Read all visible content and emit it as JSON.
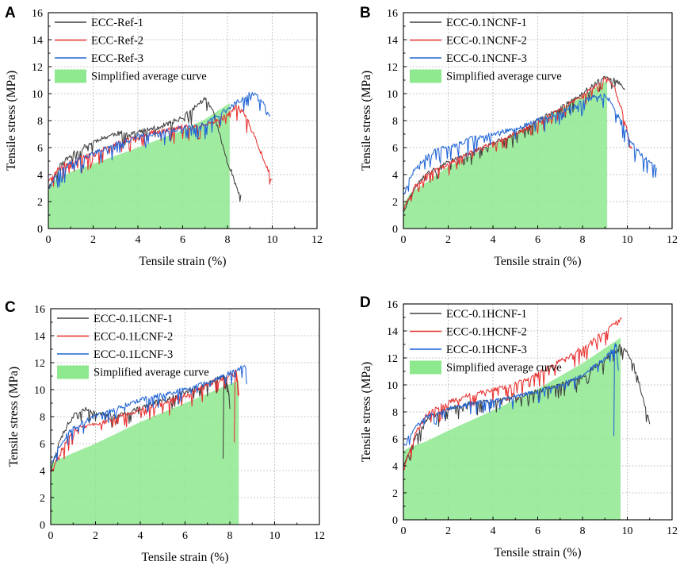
{
  "chart_data": [
    {
      "type": "line",
      "panel": "A",
      "xlabel": "Tensile strain (%)",
      "ylabel": "Tensile stress (MPa)",
      "xlim": [
        0,
        12
      ],
      "ylim": [
        0,
        16
      ],
      "xticks": [
        0,
        2,
        4,
        6,
        8,
        10,
        12
      ],
      "yticks": [
        0,
        2,
        4,
        6,
        8,
        10,
        12,
        14,
        16
      ],
      "grid": true,
      "legend_position": "top-left",
      "series": [
        {
          "name": "ECC-Ref-1",
          "color": "#404040",
          "x": [
            0,
            0.5,
            1,
            2,
            3,
            4,
            5,
            6,
            6.5,
            7,
            7.4,
            7.8,
            8.1,
            8.4,
            8.6
          ],
          "y": [
            3.0,
            4.6,
            5.4,
            6.4,
            7.0,
            7.1,
            7.5,
            8.2,
            8.9,
            9.6,
            8.5,
            6.0,
            4.5,
            3.2,
            2.5
          ],
          "noise": 0.6,
          "seed": 11
        },
        {
          "name": "ECC-Ref-2",
          "color": "#e8312f",
          "x": [
            0,
            0.5,
            1,
            2,
            3,
            4,
            5,
            6,
            7,
            8,
            8.5,
            8.9,
            9.4,
            10.0
          ],
          "y": [
            3.5,
            4.5,
            4.9,
            5.5,
            6.2,
            6.8,
            7.2,
            7.5,
            7.6,
            8.4,
            9.2,
            8.0,
            6.0,
            3.6
          ],
          "noise": 0.6,
          "seed": 23
        },
        {
          "name": "ECC-Ref-3",
          "color": "#1f64d6",
          "x": [
            0,
            0.5,
            1,
            2,
            3,
            4,
            5,
            6,
            7,
            8,
            8.5,
            9,
            9.3,
            9.6,
            9.9
          ],
          "y": [
            3.0,
            4.2,
            4.8,
            5.5,
            6.2,
            6.8,
            7.1,
            7.4,
            7.7,
            8.8,
            9.4,
            10.0,
            9.8,
            9.4,
            8.3
          ],
          "noise": 0.6,
          "seed": 37
        }
      ],
      "simplified_average_curve": {
        "name": "Simplified average curve",
        "color": "#8ee88e",
        "x": [
          0,
          0.3,
          1,
          2,
          4,
          6,
          7,
          8.1,
          8.1
        ],
        "y": [
          2.8,
          3.6,
          4.2,
          4.8,
          6.0,
          7.3,
          8.1,
          9.3,
          0
        ]
      }
    },
    {
      "type": "line",
      "panel": "B",
      "xlabel": "Tensile strain (%)",
      "ylabel": "Tensile stress (MPa)",
      "xlim": [
        0,
        12
      ],
      "ylim": [
        0,
        16
      ],
      "xticks": [
        0,
        2,
        4,
        6,
        8,
        10,
        12
      ],
      "yticks": [
        0,
        2,
        4,
        6,
        8,
        10,
        12,
        14,
        16
      ],
      "grid": true,
      "legend_position": "top-left",
      "series": [
        {
          "name": "ECC-0.1NCNF-1",
          "color": "#404040",
          "x": [
            0,
            0.5,
            1,
            2,
            3,
            4,
            5,
            6,
            7,
            8,
            8.6,
            9.0,
            9.3,
            9.6,
            9.9
          ],
          "y": [
            1.2,
            3.0,
            4.0,
            4.9,
            5.6,
            6.3,
            7.0,
            8.0,
            8.9,
            10.0,
            10.8,
            11.2,
            11.1,
            10.8,
            10.3
          ],
          "noise": 0.5,
          "seed": 41
        },
        {
          "name": "ECC-0.1NCNF-2",
          "color": "#e8312f",
          "x": [
            0,
            0.5,
            1,
            2,
            3,
            4,
            5,
            6,
            7,
            8,
            8.6,
            9.0,
            9.4,
            9.8,
            10.2
          ],
          "y": [
            1.5,
            3.1,
            3.9,
            4.8,
            5.6,
            6.3,
            7.0,
            7.9,
            8.8,
            9.8,
            10.6,
            11.1,
            10.6,
            8.5,
            5.9
          ],
          "noise": 0.5,
          "seed": 53
        },
        {
          "name": "ECC-0.1NCNF-3",
          "color": "#1f64d6",
          "x": [
            0,
            0.3,
            0.6,
            1,
            1.5,
            2,
            3,
            4,
            5,
            6,
            7,
            8,
            9,
            9.6,
            10.3,
            11,
            11.3
          ],
          "y": [
            2.5,
            3.8,
            4.6,
            5.3,
            5.8,
            6.0,
            6.6,
            7.0,
            7.3,
            8.0,
            8.6,
            9.4,
            10.0,
            8.4,
            6.0,
            4.8,
            4.5
          ],
          "noise": 0.6,
          "seed": 67
        }
      ],
      "simplified_average_curve": {
        "name": "Simplified average curve",
        "color": "#8ee88e",
        "x": [
          0,
          0.3,
          1,
          2,
          4,
          6,
          8,
          9.1,
          9.1
        ],
        "y": [
          1.8,
          2.6,
          3.4,
          4.6,
          6.2,
          7.9,
          9.8,
          11.0,
          0
        ]
      }
    },
    {
      "type": "line",
      "panel": "C",
      "xlabel": "Tensile strain (%)",
      "ylabel": "Tensile stress (MPa)",
      "xlim": [
        0,
        12
      ],
      "ylim": [
        0,
        16
      ],
      "xticks": [
        0,
        2,
        4,
        6,
        8,
        10,
        12
      ],
      "yticks": [
        0,
        2,
        4,
        6,
        8,
        10,
        12,
        14,
        16
      ],
      "grid": true,
      "legend_position": "top-left",
      "series": [
        {
          "name": "ECC-0.1LCNF-1",
          "color": "#404040",
          "x": [
            0,
            0.4,
            0.8,
            1.2,
            1.6,
            2,
            3,
            4,
            5,
            6,
            7,
            7.8,
            8.0,
            7.8,
            7.7
          ],
          "y": [
            4.0,
            6.2,
            7.5,
            8.4,
            8.6,
            8.2,
            8.0,
            8.6,
            9.2,
            9.8,
            10.4,
            11.0,
            9.2,
            6.5,
            4.9
          ],
          "noise": 0.6,
          "seed": 71
        },
        {
          "name": "ECC-0.1LCNF-2",
          "color": "#e8312f",
          "x": [
            0,
            0.4,
            0.8,
            1,
            2,
            3,
            4,
            5,
            6,
            7,
            8,
            8.3,
            8.4,
            8.3,
            8.2
          ],
          "y": [
            3.8,
            5.2,
            6.5,
            7.0,
            7.4,
            7.9,
            8.5,
            9.0,
            9.6,
            10.3,
            11.0,
            11.3,
            9.5,
            7.2,
            6.1
          ],
          "noise": 0.6,
          "seed": 83
        },
        {
          "name": "ECC-0.1LCNF-3",
          "color": "#1f64d6",
          "x": [
            0,
            0.4,
            0.8,
            1,
            2,
            3,
            4,
            5,
            6,
            7,
            8,
            8.5,
            8.7,
            8.75
          ],
          "y": [
            4.5,
            5.8,
            6.8,
            7.2,
            8.0,
            8.6,
            9.2,
            9.6,
            10.0,
            10.5,
            11.2,
            11.6,
            11.7,
            10.4
          ],
          "noise": 0.55,
          "seed": 97
        }
      ],
      "simplified_average_curve": {
        "name": "Simplified average curve",
        "color": "#8ee88e",
        "x": [
          0,
          0.3,
          1,
          2,
          4,
          6,
          8.4,
          8.4
        ],
        "y": [
          4.5,
          4.8,
          5.3,
          6.0,
          7.6,
          9.0,
          10.7,
          0
        ]
      }
    },
    {
      "type": "line",
      "panel": "D",
      "xlabel": "Tensile strain (%)",
      "ylabel": "Tensile stress (MPa)",
      "xlim": [
        0,
        12
      ],
      "ylim": [
        0,
        16
      ],
      "xticks": [
        0,
        2,
        4,
        6,
        8,
        10,
        12
      ],
      "yticks": [
        0,
        2,
        4,
        6,
        8,
        10,
        12,
        14,
        16
      ],
      "grid": true,
      "legend_position": "top-left",
      "series": [
        {
          "name": "ECC-0.1HCNF-1",
          "color": "#404040",
          "x": [
            0,
            0.5,
            1,
            2,
            3,
            4,
            5,
            6,
            7,
            8,
            9,
            9.6,
            9.9,
            10.3,
            10.7,
            11.0
          ],
          "y": [
            4.0,
            6.0,
            7.4,
            8.2,
            8.6,
            8.8,
            9.1,
            9.5,
            10.0,
            10.6,
            11.8,
            12.8,
            12.7,
            11.5,
            9.0,
            7.1
          ],
          "noise": 0.55,
          "seed": 101
        },
        {
          "name": "ECC-0.1HCNF-2",
          "color": "#e8312f",
          "x": [
            0,
            0.5,
            1,
            2,
            3,
            4,
            5,
            6,
            7,
            8,
            9,
            9.5,
            9.75
          ],
          "y": [
            3.8,
            6.2,
            7.7,
            8.7,
            9.2,
            9.6,
            10.0,
            10.8,
            11.7,
            12.7,
            13.9,
            14.6,
            14.9
          ],
          "noise": 0.6,
          "seed": 113
        },
        {
          "name": "ECC-0.1HCNF-3",
          "color": "#1f64d6",
          "x": [
            0,
            0.5,
            1,
            2,
            3,
            4,
            5,
            6,
            7,
            8,
            9,
            9.5,
            9.6,
            9.5,
            9.4
          ],
          "y": [
            5.5,
            6.8,
            7.6,
            8.2,
            8.6,
            8.8,
            9.1,
            9.5,
            10.0,
            10.7,
            11.9,
            13.0,
            11.0,
            8.0,
            6.2
          ],
          "noise": 0.5,
          "seed": 127
        }
      ],
      "simplified_average_curve": {
        "name": "Simplified average curve",
        "color": "#8ee88e",
        "x": [
          0,
          0.3,
          1,
          2,
          4,
          6,
          8,
          9.7,
          9.7
        ],
        "y": [
          5.1,
          5.4,
          5.8,
          6.6,
          8.1,
          9.7,
          11.6,
          13.5,
          0
        ]
      }
    }
  ]
}
